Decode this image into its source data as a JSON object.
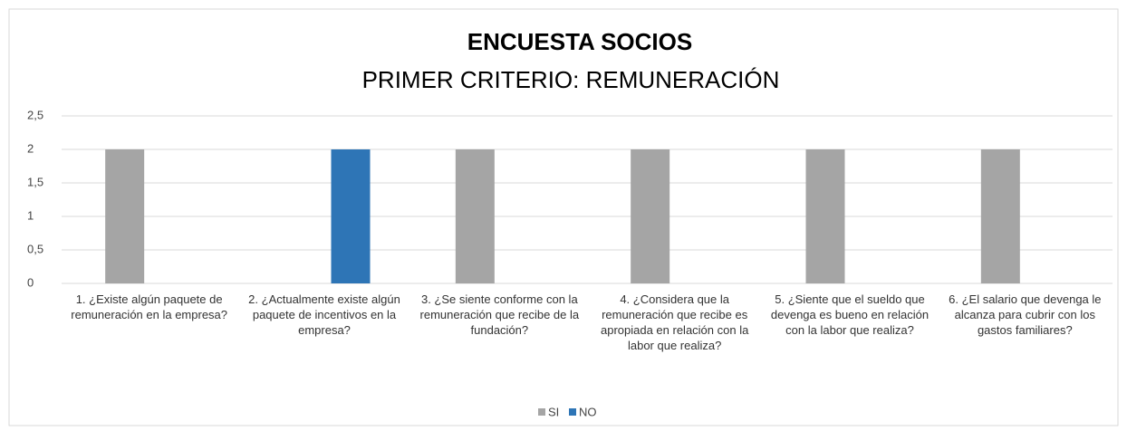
{
  "chart_data": {
    "type": "bar",
    "title": "ENCUESTA SOCIOS",
    "subtitle": "PRIMER CRITERIO: REMUNERACIÓN",
    "categories": [
      "1. ¿Existe algún paquete de remuneración en la empresa?",
      "2. ¿Actualmente existe algún paquete de incentivos en la empresa?",
      "3. ¿Se siente conforme con la remuneración que recibe de la fundación?",
      "4. ¿Considera que la remuneración que recibe es apropiada en relación con la labor que realiza?",
      "5. ¿Siente que el sueldo que devenga es bueno en relación con la labor que realiza?",
      "6. ¿El salario que devenga le alcanza para cubrir con los gastos familiares?"
    ],
    "series": [
      {
        "name": "SI",
        "color": "#a5a5a5",
        "values": [
          2,
          0,
          2,
          2,
          2,
          2
        ]
      },
      {
        "name": "NO",
        "color": "#2e75b6",
        "values": [
          0,
          2,
          0,
          0,
          0,
          0
        ]
      }
    ],
    "ylim": [
      0,
      2.5
    ],
    "yticks": [
      0,
      {
        "value": 0.5,
        "label": "0,5"
      },
      1,
      {
        "value": 1.5,
        "label": "1,5"
      },
      2,
      {
        "value": 2.5,
        "label": "2,5"
      }
    ],
    "grid": true,
    "legend": "bottom"
  }
}
